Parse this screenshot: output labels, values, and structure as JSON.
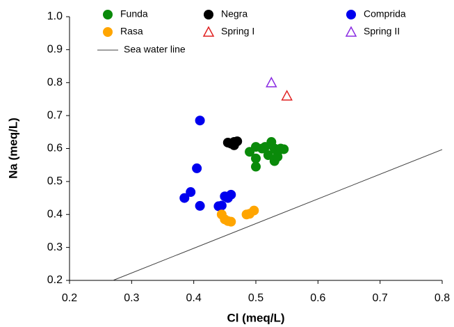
{
  "chart_data": {
    "type": "scatter",
    "xlabel": "Cl (meq/L)",
    "ylabel": "Na (meq/L)",
    "xlim": [
      0.2,
      0.8
    ],
    "xticks": [
      0.2,
      0.3,
      0.4,
      0.5,
      0.6,
      0.7,
      0.8
    ],
    "ylim": [
      0.2,
      1.0
    ],
    "yticks": [
      0.2,
      0.3,
      0.4,
      0.5,
      0.6,
      0.7,
      0.8,
      0.9,
      {
        "value": 1.0,
        "label": "1.0"
      }
    ],
    "grid": false,
    "legend": "top",
    "series": [
      {
        "name": "Funda",
        "color": "#0a8a0a",
        "marker": "circle",
        "x": [
          0.49,
          0.5,
          0.51,
          0.5,
          0.5,
          0.515,
          0.52,
          0.525,
          0.53,
          0.535,
          0.54,
          0.545,
          0.53,
          0.535
        ],
        "values": [
          0.59,
          0.605,
          0.6,
          0.57,
          0.545,
          0.605,
          0.58,
          0.62,
          0.6,
          0.59,
          0.6,
          0.598,
          0.562,
          0.575
        ]
      },
      {
        "name": "Negra",
        "color": "#000000",
        "marker": "circle",
        "x": [
          0.455,
          0.46,
          0.465,
          0.47,
          0.465
        ],
        "values": [
          0.618,
          0.615,
          0.61,
          0.622,
          0.62
        ]
      },
      {
        "name": "Comprida",
        "color": "#0000ee",
        "marker": "circle",
        "x": [
          0.41,
          0.405,
          0.395,
          0.385,
          0.41,
          0.44,
          0.445,
          0.45,
          0.455,
          0.46
        ],
        "values": [
          0.685,
          0.54,
          0.468,
          0.45,
          0.426,
          0.425,
          0.427,
          0.455,
          0.45,
          0.46
        ]
      },
      {
        "name": "Rasa",
        "color": "#ffa500",
        "marker": "circle",
        "x": [
          0.445,
          0.45,
          0.455,
          0.46,
          0.485,
          0.49,
          0.497
        ],
        "values": [
          0.4,
          0.385,
          0.38,
          0.378,
          0.4,
          0.402,
          0.412
        ]
      },
      {
        "name": "Spring I",
        "color": "#e02020",
        "marker": "triangle",
        "x": [
          0.55
        ],
        "values": [
          0.76
        ]
      },
      {
        "name": "Spring II",
        "color": "#8a2be2",
        "marker": "triangle",
        "x": [
          0.525
        ],
        "values": [
          0.8
        ]
      },
      {
        "name": "Sea water line",
        "color": "#404040",
        "marker": "line",
        "x": [
          0.27,
          0.8
        ],
        "values": [
          0.2,
          0.597
        ]
      }
    ]
  }
}
